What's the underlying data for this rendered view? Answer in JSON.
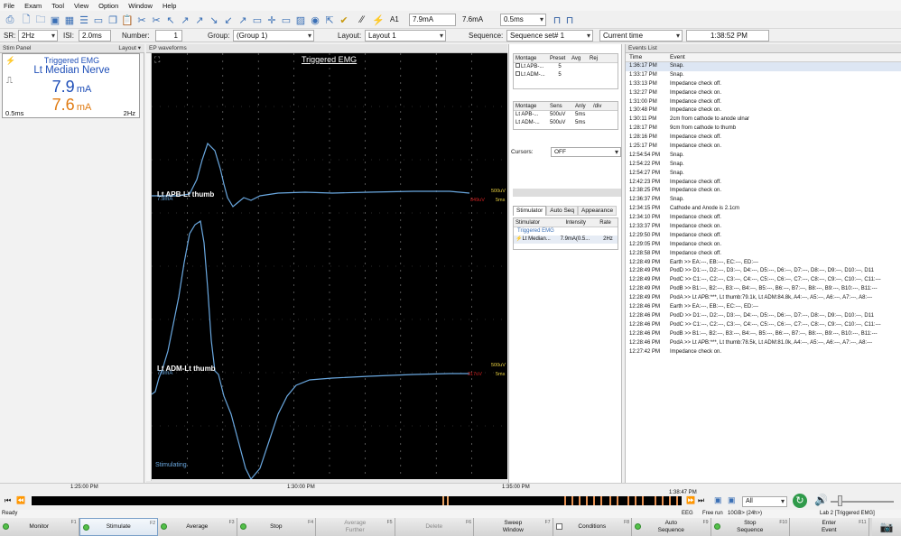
{
  "menu": [
    "File",
    "Exam",
    "Tool",
    "View",
    "Option",
    "Window",
    "Help"
  ],
  "toolbar": {
    "channel": "A1",
    "intensity_1": "7.9mA",
    "intensity_2": "7.6mA",
    "duration": "0.5ms"
  },
  "settings": {
    "sr_label": "SR:",
    "sr_value": "2Hz",
    "isi_label": "ISI:",
    "isi_value": "2.0ms",
    "number_label": "Number:",
    "number_value": "1",
    "group_label": "Group:",
    "group_value": "(Group 1)",
    "layout_label": "Layout:",
    "layout_value": "Layout 1",
    "sequence_label": "Sequence:",
    "sequence_value": "Sequence set# 1",
    "time_mode": "Current time",
    "clock": "1:38:52 PM"
  },
  "stim_panel": {
    "title": "Stim Panel",
    "layout_label": "Layout ▾",
    "mode": "Triggered EMG",
    "nerve": "Lt Median Nerve",
    "intensity_1": "7.9",
    "intensity_2": "7.6",
    "unit": "mA",
    "duration": "0.5ms",
    "rate": "2Hz",
    "colors": {
      "intensity_1": "#1f4fb8",
      "intensity_2": "#e07b12"
    }
  },
  "ep_panel": {
    "title": "EP waveforms",
    "plot_title": "Triggered EMG",
    "trace1": {
      "label": "Lt APB-Lt thumb",
      "intensity": "7.9mA",
      "sens": "500uV",
      "div": "5ms",
      "amp": "849uV"
    },
    "trace2": {
      "label": "Lt ADM-Lt thumb",
      "intensity": "7.9mA",
      "sens": "500uV",
      "div": "5ms",
      "amp": "317uV"
    },
    "stimulating": "Stimulating",
    "trace_color": "#6aa8e0"
  },
  "side_panel": {
    "montage_header": [
      "Montage",
      "Preset",
      "Avg",
      "Rej"
    ],
    "montage_rows": [
      {
        "name": "Lt APB-...",
        "preset": "5"
      },
      {
        "name": "Lt ADM-...",
        "preset": "5"
      }
    ],
    "sens_header": [
      "Montage",
      "Sens",
      "Anly",
      "/div"
    ],
    "sens_rows": [
      {
        "name": "Lt APB-...",
        "sens": "500uV",
        "div": "5ms"
      },
      {
        "name": "Lt ADM-...",
        "sens": "500uV",
        "div": "5ms"
      }
    ],
    "cursors_label": "Cursors:",
    "cursors_value": "OFF",
    "tabs": [
      "Stimulator",
      "Auto Seq",
      "Appearance"
    ],
    "stim_header": [
      "Stimulator",
      "Intensity",
      "Rate"
    ],
    "stim_group": "Triggered EMG",
    "stim_row": {
      "name": "Lt Median...",
      "intensity": "7.9mA(0.5...",
      "rate": "2Hz"
    }
  },
  "events": {
    "title": "Events List",
    "header": [
      "Time",
      "Event"
    ],
    "rows": [
      [
        "1:36:17 PM",
        "Snap."
      ],
      [
        "1:33:17 PM",
        "Snap."
      ],
      [
        "1:33:13 PM",
        "Impedance check off."
      ],
      [
        "1:32:27 PM",
        "Impedance check on."
      ],
      [
        "1:31:00 PM",
        "Impedance check off."
      ],
      [
        "1:30:48 PM",
        "Impedance check on."
      ],
      [
        "1:30:11 PM",
        "2cm from cathode to anode ulnar"
      ],
      [
        "1:28:17 PM",
        "9cm from cathode to thumb"
      ],
      [
        "1:28:16 PM",
        "Impedance check off."
      ],
      [
        "1:25:17 PM",
        "Impedance check on."
      ],
      [
        "12:54:54 PM",
        "Snap."
      ],
      [
        "12:54:22 PM",
        "Snap."
      ],
      [
        "12:54:27 PM",
        "Snap."
      ],
      [
        "12:42:23 PM",
        "Impedance check off."
      ],
      [
        "12:38:25 PM",
        "Impedance check on."
      ],
      [
        "12:36:37 PM",
        "Snap."
      ],
      [
        "12:34:15 PM",
        "Cathode and Anode is 2.1cm"
      ],
      [
        "12:34:10 PM",
        "Impedance check off."
      ],
      [
        "12:33:37 PM",
        "Impedance check on."
      ],
      [
        "12:29:50 PM",
        "Impedance check off."
      ],
      [
        "12:29:05 PM",
        "Impedance check on."
      ],
      [
        "12:28:58 PM",
        "Impedance check off."
      ],
      [
        "12:28:49 PM",
        "Earth >> EA:---, EB:---, EC:---, ED:---"
      ],
      [
        "12:28:49 PM",
        "PodD >> D1:---, D2:---, D3:---, D4:---, D5:---, D6:---, D7:---, D8:---, D9:---, D10:---, D11"
      ],
      [
        "12:28:49 PM",
        "PodC >> C1:---, C2:---, C3:---, C4:---, C5:---, C6:---, C7:---, C8:---, C9:---, C10:---, C11:---"
      ],
      [
        "12:28:49 PM",
        "PodB >> B1:---, B2:---, B3:---, B4:---, B5:---, B6:---, B7:---, B8:---, B9:---, B10:---, B11:---"
      ],
      [
        "12:28:49 PM",
        "PodA >> Lt APB:***, Lt thumb:79.1k, Lt ADM:84.8k, A4:---, A5:---, A6:---, A7:---, A8:---"
      ],
      [
        "12:28:46 PM",
        "Earth >> EA:---, EB:---, EC:---, ED:---"
      ],
      [
        "12:28:46 PM",
        "PodD >> D1:---, D2:---, D3:---, D4:---, D5:---, D6:---, D7:---, D8:---, D9:---, D10:---, D11"
      ],
      [
        "12:28:46 PM",
        "PodC >> C1:---, C2:---, C3:---, C4:---, C5:---, C6:---, C7:---, C8:---, C9:---, C10:---, C11:---"
      ],
      [
        "12:28:46 PM",
        "PodB >> B1:---, B2:---, B3:---, B4:---, B5:---, B6:---, B7:---, B8:---, B9:---, B10:---, B11:---"
      ],
      [
        "12:28:46 PM",
        "PodA >> Lt APB:***, Lt thumb:78.5k, Lt ADM:81.0k, A4:---, A5:---, A6:---, A7:---, A8:---"
      ],
      [
        "12:27:42 PM",
        "Impedance check on."
      ]
    ]
  },
  "timeline": {
    "ticks": [
      "1:25:00 PM",
      "1:30:00 PM",
      "1:35:00 PM"
    ],
    "cursor_time": "1:38:47 PM",
    "zoom_value": "All"
  },
  "status": {
    "left": "Ready",
    "eeg": "EEG",
    "free_run": "Free run",
    "storage": "10GB> (24h>)",
    "lab": "Lab 2 [Triggered EMG]"
  },
  "fkeys": [
    {
      "label": "Monitor",
      "fn": "F1",
      "led": "on"
    },
    {
      "label": "Stimulate",
      "fn": "F2",
      "led": "on",
      "active": true
    },
    {
      "label": "Average",
      "fn": "F3",
      "led": "on"
    },
    {
      "label": "Stop",
      "fn": "F4",
      "led": "on"
    },
    {
      "label": "Average\nFurther",
      "fn": "F5",
      "disabled": true
    },
    {
      "label": "Delete",
      "fn": "F6",
      "disabled": true
    },
    {
      "label": "Sweep\nWindow",
      "fn": "F7"
    },
    {
      "label": "Conditions",
      "fn": "F8",
      "check": true
    },
    {
      "label": "Auto\nSequence",
      "fn": "F9",
      "led": "on"
    },
    {
      "label": "Stop\nSequence",
      "fn": "F10",
      "led": "on"
    },
    {
      "label": "Enter\nEvent",
      "fn": "F11"
    }
  ]
}
